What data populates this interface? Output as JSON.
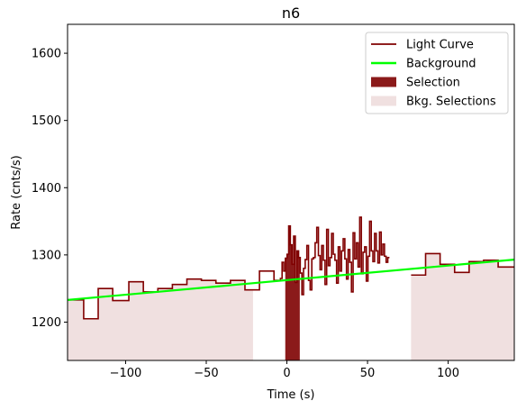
{
  "chart_data": {
    "type": "line",
    "title": "n6",
    "xlabel": "Time (s)",
    "ylabel": "Rate (cnts/s)",
    "xlim": [
      -136,
      141
    ],
    "ylim": [
      1143,
      1643
    ],
    "xticks": [
      -100,
      -50,
      0,
      50,
      100
    ],
    "yticks": [
      1200,
      1300,
      1400,
      1500,
      1600
    ],
    "grid": false,
    "legend_position": "top-right",
    "colors": {
      "light_curve": "#800000",
      "background": "#00ff00",
      "selection": "#8b1a1a",
      "bkg_selection": "#f0e0e0"
    },
    "legend": [
      {
        "label": "Light Curve",
        "kind": "line",
        "color": "#800000"
      },
      {
        "label": "Background",
        "kind": "line",
        "color": "#00ff00"
      },
      {
        "label": "Selection",
        "kind": "patch",
        "color": "#8b1a1a"
      },
      {
        "label": "Bkg. Selections",
        "kind": "patch",
        "color": "#f0e0e0"
      }
    ],
    "light_curve": {
      "name": "Light Curve",
      "steps_coarse_left": [
        {
          "x0": -136,
          "x1": -126,
          "y": 1233
        },
        {
          "x0": -126,
          "x1": -117,
          "y": 1205
        },
        {
          "x0": -117,
          "x1": -108,
          "y": 1250
        },
        {
          "x0": -108,
          "x1": -98,
          "y": 1232
        },
        {
          "x0": -98,
          "x1": -89,
          "y": 1260
        },
        {
          "x0": -89,
          "x1": -80,
          "y": 1245
        },
        {
          "x0": -80,
          "x1": -71,
          "y": 1250
        },
        {
          "x0": -71,
          "x1": -62,
          "y": 1256
        },
        {
          "x0": -62,
          "x1": -53,
          "y": 1264
        },
        {
          "x0": -53,
          "x1": -44,
          "y": 1262
        },
        {
          "x0": -44,
          "x1": -35,
          "y": 1258
        },
        {
          "x0": -35,
          "x1": -26,
          "y": 1262
        },
        {
          "x0": -26,
          "x1": -17,
          "y": 1248
        },
        {
          "x0": -17,
          "x1": -8,
          "y": 1276
        },
        {
          "x0": -8,
          "x1": -4,
          "y": 1262
        }
      ],
      "fine": {
        "x_start": -4,
        "bin_width": 1.024,
        "y": [
          1265,
          1289,
          1276,
          1295,
          1301,
          1343,
          1315,
          1286,
          1328,
          1259,
          1306,
          1296,
          1273,
          1241,
          1280,
          1293,
          1314,
          1262,
          1248,
          1294,
          1296,
          1318,
          1341,
          1299,
          1278,
          1314,
          1292,
          1256,
          1338,
          1284,
          1296,
          1332,
          1301,
          1292,
          1258,
          1312,
          1276,
          1306,
          1324,
          1294,
          1264,
          1308,
          1289,
          1245,
          1333,
          1294,
          1318,
          1282,
          1356,
          1272,
          1304,
          1312,
          1261,
          1298,
          1350,
          1306,
          1290,
          1332,
          1306,
          1288,
          1334,
          1300,
          1316,
          1298,
          1289,
          1296
        ]
      },
      "steps_coarse_right": [
        {
          "x0": 77,
          "x1": 86,
          "y": 1270
        },
        {
          "x0": 86,
          "x1": 95,
          "y": 1302
        },
        {
          "x0": 95,
          "x1": 104,
          "y": 1286
        },
        {
          "x0": 104,
          "x1": 113,
          "y": 1274
        },
        {
          "x0": 113,
          "x1": 122,
          "y": 1290
        },
        {
          "x0": 122,
          "x1": 131,
          "y": 1292
        },
        {
          "x0": 131,
          "x1": 141,
          "y": 1282
        }
      ]
    },
    "background": {
      "name": "Background",
      "x": [
        -136,
        141
      ],
      "y": [
        1233,
        1293
      ]
    },
    "selection": {
      "name": "Selection",
      "x0": -1,
      "x1": 8
    },
    "bkg_selections": [
      {
        "x0": -136,
        "x1": -21
      },
      {
        "x0": 76,
        "x1": 141
      }
    ]
  }
}
